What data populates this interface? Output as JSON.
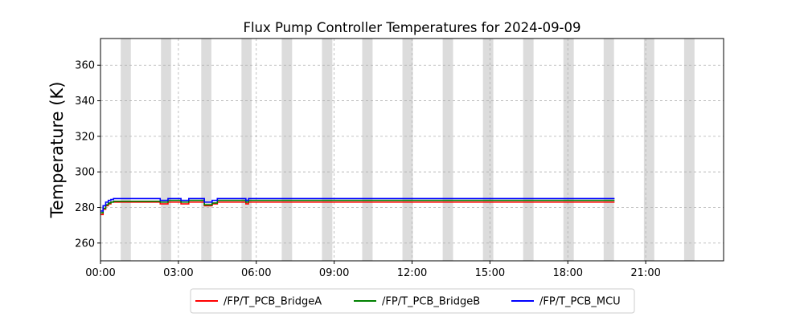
{
  "chart_data": {
    "type": "line",
    "title": "Flux Pump Controller Temperatures for 2024-09-09",
    "xlabel": "",
    "ylabel": "Temperature (K)",
    "x_unit": "hours",
    "xlim": [
      0,
      24
    ],
    "ylim": [
      250,
      375
    ],
    "x_ticks": [
      0,
      3,
      6,
      9,
      12,
      15,
      18,
      21
    ],
    "x_tick_labels": [
      "00:00",
      "03:00",
      "06:00",
      "09:00",
      "12:00",
      "15:00",
      "18:00",
      "21:00"
    ],
    "y_ticks": [
      260,
      280,
      300,
      320,
      340,
      360
    ],
    "y_tick_labels": [
      "260",
      "280",
      "300",
      "320",
      "340",
      "360"
    ],
    "grid": true,
    "legend": "bottom-center",
    "shaded_bands": [
      [
        0.78,
        1.17
      ],
      [
        2.33,
        2.72
      ],
      [
        3.88,
        4.27
      ],
      [
        5.43,
        5.82
      ],
      [
        6.98,
        7.38
      ],
      [
        8.53,
        8.93
      ],
      [
        10.08,
        10.48
      ],
      [
        11.63,
        12.03
      ],
      [
        13.18,
        13.58
      ],
      [
        14.73,
        15.13
      ],
      [
        16.28,
        16.68
      ],
      [
        17.83,
        18.23
      ],
      [
        19.38,
        19.78
      ],
      [
        20.93,
        21.33
      ],
      [
        22.48,
        22.88
      ]
    ],
    "series": [
      {
        "name": "/FP/T_PCB_BridgeA",
        "color": "#ff0000",
        "x": [
          0,
          0.1,
          0.2,
          0.3,
          0.4,
          0.5,
          1.0,
          2.2,
          2.3,
          2.5,
          2.6,
          3.0,
          3.1,
          3.3,
          3.4,
          3.9,
          4.0,
          4.2,
          4.3,
          4.5,
          5.5,
          5.6,
          5.7,
          6.0,
          10.0,
          15.0,
          19.8
        ],
        "y": [
          276,
          279,
          281,
          282,
          283,
          283,
          283,
          283,
          282,
          282,
          283,
          283,
          282,
          282,
          283,
          283,
          281,
          281,
          282,
          283,
          283,
          282,
          283,
          283,
          283,
          283,
          283
        ]
      },
      {
        "name": "/FP/T_PCB_BridgeB",
        "color": "#008000",
        "x": [
          0,
          0.1,
          0.2,
          0.3,
          0.4,
          0.5,
          1.0,
          2.2,
          2.3,
          2.5,
          2.6,
          3.0,
          3.1,
          3.3,
          3.4,
          3.9,
          4.0,
          4.2,
          4.3,
          4.5,
          5.5,
          5.6,
          5.7,
          6.0,
          10.0,
          15.0,
          19.8
        ],
        "y": [
          277,
          279.5,
          281.5,
          282.5,
          283,
          283.5,
          283.5,
          283.5,
          283,
          283,
          284,
          284,
          283,
          283,
          284,
          284,
          281.5,
          281.5,
          282.5,
          284,
          284,
          283,
          284,
          284,
          284,
          284,
          284
        ]
      },
      {
        "name": "/FP/T_PCB_MCU",
        "color": "#0000ff",
        "x": [
          0,
          0.1,
          0.2,
          0.3,
          0.4,
          0.5,
          1.0,
          2.2,
          2.3,
          2.5,
          2.6,
          3.0,
          3.1,
          3.3,
          3.4,
          3.9,
          4.0,
          4.2,
          4.3,
          4.5,
          5.5,
          5.6,
          5.7,
          6.0,
          10.0,
          15.0,
          19.8
        ],
        "y": [
          278,
          281,
          283,
          284,
          284.5,
          285,
          285,
          285,
          284,
          284,
          285,
          285,
          284,
          284,
          285,
          285,
          283,
          283,
          284,
          285,
          285,
          284,
          285,
          285,
          285,
          285,
          285
        ]
      }
    ]
  }
}
